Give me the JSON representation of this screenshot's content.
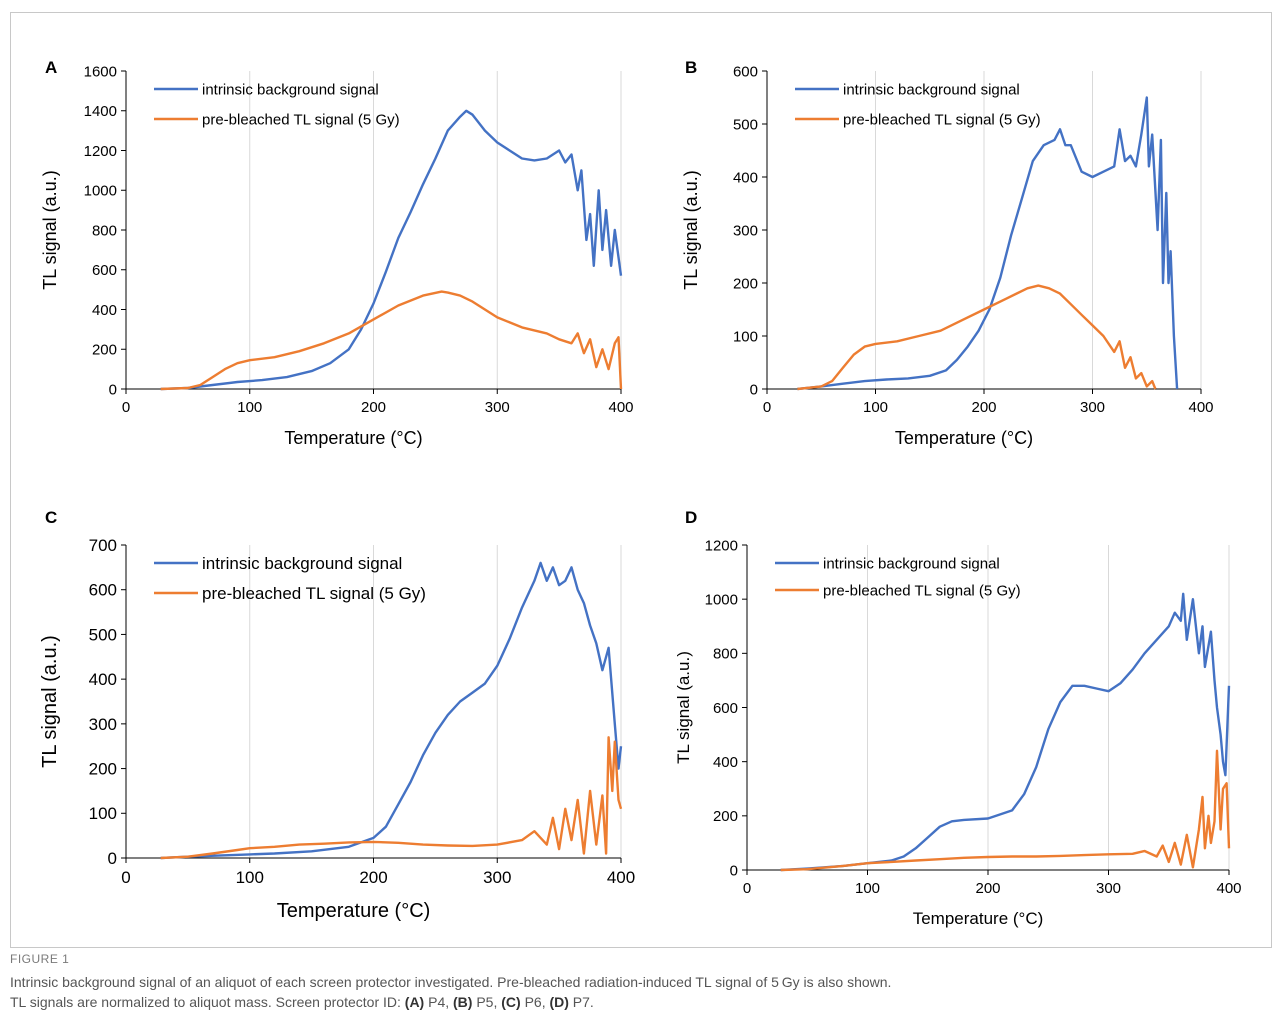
{
  "figure": {
    "label": "FIGURE 1",
    "caption_line1": "Intrinsic background signal of an aliquot of each screen protector investigated. Pre-bleached radiation-induced TL signal of 5 Gy is also shown.",
    "caption_line2_start": "TL signals are normalized to aliquot mass. Screen protector ID: ",
    "id_a": "(A)",
    "id_a_val": " P4, ",
    "id_b": "(B)",
    "id_b_val": " P5, ",
    "id_c": "(C)",
    "id_c_val": " P6, ",
    "id_d": "(D)",
    "id_d_val": " P7."
  },
  "colors": {
    "blue": "#4472C4",
    "orange": "#ED7D31",
    "grid": "#d9d9d9",
    "axis": "#000000"
  },
  "chart_data": [
    {
      "panel": "A",
      "type": "line",
      "xlabel": "Temperature (°C)",
      "ylabel": "TL signal (a.u.)",
      "xlim": [
        0,
        400
      ],
      "ylim": [
        0,
        1600
      ],
      "xticks": [
        0,
        100,
        200,
        300,
        400
      ],
      "yticks": [
        0,
        200,
        400,
        600,
        800,
        1000,
        1200,
        1400,
        1600
      ],
      "grid": "vertical",
      "legend": "top-left",
      "series": [
        {
          "name": "intrinsic background signal",
          "color": "blue",
          "x": [
            28,
            50,
            70,
            90,
            110,
            130,
            150,
            165,
            180,
            190,
            200,
            210,
            220,
            230,
            240,
            250,
            260,
            270,
            275,
            280,
            290,
            300,
            310,
            320,
            330,
            340,
            350,
            355,
            360,
            365,
            368,
            372,
            375,
            378,
            382,
            385,
            388,
            392,
            395,
            400
          ],
          "y": [
            0,
            5,
            20,
            35,
            45,
            60,
            90,
            130,
            200,
            300,
            430,
            590,
            760,
            890,
            1030,
            1160,
            1300,
            1370,
            1400,
            1380,
            1300,
            1240,
            1200,
            1160,
            1150,
            1160,
            1200,
            1140,
            1180,
            1000,
            1100,
            750,
            880,
            620,
            1000,
            700,
            900,
            620,
            800,
            570
          ]
        },
        {
          "name": "pre-bleached TL signal (5 Gy)",
          "color": "orange",
          "x": [
            28,
            50,
            60,
            70,
            80,
            90,
            100,
            120,
            140,
            160,
            180,
            200,
            220,
            240,
            255,
            260,
            270,
            280,
            290,
            300,
            320,
            340,
            350,
            360,
            365,
            370,
            375,
            380,
            385,
            390,
            395,
            398,
            400
          ],
          "y": [
            0,
            5,
            20,
            60,
            100,
            130,
            145,
            160,
            190,
            230,
            280,
            350,
            420,
            470,
            490,
            485,
            470,
            440,
            400,
            360,
            310,
            280,
            250,
            230,
            280,
            180,
            250,
            110,
            200,
            100,
            230,
            260,
            0
          ]
        }
      ]
    },
    {
      "panel": "B",
      "type": "line",
      "xlabel": "Temperature (°C)",
      "ylabel": "TL signal (a.u.)",
      "xlim": [
        0,
        400
      ],
      "ylim": [
        0,
        600
      ],
      "xticks": [
        0,
        100,
        200,
        300,
        400
      ],
      "yticks": [
        0,
        100,
        200,
        300,
        400,
        500,
        600
      ],
      "grid": "vertical",
      "legend": "top-left",
      "series": [
        {
          "name": "intrinsic background signal",
          "color": "blue",
          "x": [
            28,
            50,
            70,
            90,
            110,
            130,
            150,
            165,
            175,
            185,
            195,
            205,
            215,
            225,
            235,
            245,
            255,
            265,
            270,
            275,
            280,
            290,
            300,
            310,
            320,
            325,
            330,
            335,
            340,
            345,
            350,
            352,
            355,
            360,
            363,
            365,
            368,
            370,
            372,
            375,
            378
          ],
          "y": [
            0,
            5,
            10,
            15,
            18,
            20,
            25,
            35,
            55,
            80,
            110,
            150,
            210,
            290,
            360,
            430,
            460,
            470,
            490,
            460,
            460,
            410,
            400,
            410,
            420,
            490,
            430,
            440,
            420,
            480,
            550,
            420,
            480,
            300,
            470,
            200,
            370,
            200,
            260,
            100,
            0
          ]
        },
        {
          "name": "pre-bleached TL signal (5 Gy)",
          "color": "orange",
          "x": [
            28,
            50,
            60,
            70,
            80,
            90,
            100,
            120,
            140,
            160,
            180,
            200,
            220,
            240,
            250,
            260,
            270,
            280,
            290,
            300,
            310,
            320,
            325,
            330,
            335,
            340,
            345,
            350,
            355,
            358
          ],
          "y": [
            0,
            5,
            15,
            40,
            65,
            80,
            85,
            90,
            100,
            110,
            130,
            150,
            170,
            190,
            195,
            190,
            180,
            160,
            140,
            120,
            100,
            70,
            90,
            40,
            60,
            20,
            30,
            5,
            15,
            0
          ]
        }
      ]
    },
    {
      "panel": "C",
      "type": "line",
      "xlabel": "Temperature (°C)",
      "ylabel": "TL signal (a.u.)",
      "xlim": [
        0,
        400
      ],
      "ylim": [
        0,
        700
      ],
      "xticks": [
        0,
        100,
        200,
        300,
        400
      ],
      "yticks": [
        0,
        100,
        200,
        300,
        400,
        500,
        600,
        700
      ],
      "grid": "vertical",
      "legend": "top-left",
      "series": [
        {
          "name": "intrinsic background signal",
          "color": "blue",
          "x": [
            28,
            50,
            80,
            100,
            120,
            150,
            180,
            200,
            210,
            220,
            230,
            240,
            250,
            260,
            270,
            280,
            290,
            300,
            310,
            320,
            330,
            335,
            340,
            345,
            350,
            355,
            360,
            365,
            370,
            375,
            380,
            385,
            390,
            395,
            398,
            400
          ],
          "y": [
            0,
            3,
            6,
            8,
            10,
            15,
            25,
            45,
            70,
            120,
            170,
            230,
            280,
            320,
            350,
            370,
            390,
            430,
            490,
            560,
            620,
            660,
            620,
            650,
            610,
            620,
            650,
            600,
            570,
            520,
            480,
            420,
            470,
            300,
            200,
            250
          ]
        },
        {
          "name": "pre-bleached TL signal (5 Gy)",
          "color": "orange",
          "x": [
            28,
            50,
            70,
            90,
            100,
            120,
            140,
            160,
            180,
            200,
            220,
            240,
            260,
            280,
            300,
            320,
            330,
            340,
            345,
            350,
            355,
            360,
            365,
            370,
            375,
            380,
            385,
            388,
            390,
            393,
            395,
            398,
            400
          ],
          "y": [
            0,
            3,
            10,
            18,
            22,
            25,
            30,
            32,
            35,
            36,
            34,
            30,
            28,
            27,
            30,
            40,
            60,
            30,
            90,
            20,
            110,
            40,
            130,
            10,
            150,
            30,
            140,
            10,
            270,
            150,
            260,
            130,
            110
          ]
        }
      ]
    },
    {
      "panel": "D",
      "type": "line",
      "xlabel": "Temperature (°C)",
      "ylabel": "TL signal (a.u.)",
      "xlim": [
        0,
        400
      ],
      "ylim": [
        0,
        1200
      ],
      "xticks": [
        0,
        100,
        200,
        300,
        400
      ],
      "yticks": [
        0,
        200,
        400,
        600,
        800,
        1000,
        1200
      ],
      "grid": "vertical",
      "legend": "top-left",
      "series": [
        {
          "name": "intrinsic background signal",
          "color": "blue",
          "x": [
            28,
            50,
            80,
            100,
            120,
            130,
            140,
            150,
            160,
            170,
            180,
            200,
            220,
            230,
            240,
            250,
            260,
            270,
            280,
            290,
            300,
            310,
            320,
            330,
            340,
            350,
            355,
            360,
            362,
            365,
            370,
            375,
            378,
            380,
            385,
            388,
            390,
            393,
            395,
            397,
            400
          ],
          "y": [
            0,
            5,
            15,
            25,
            35,
            50,
            80,
            120,
            160,
            180,
            185,
            190,
            220,
            280,
            380,
            520,
            620,
            680,
            680,
            670,
            660,
            690,
            740,
            800,
            850,
            900,
            950,
            920,
            1020,
            850,
            1000,
            800,
            900,
            750,
            880,
            700,
            600,
            500,
            400,
            350,
            680
          ]
        },
        {
          "name": "pre-bleached TL signal (5 Gy)",
          "color": "orange",
          "x": [
            28,
            50,
            80,
            100,
            120,
            140,
            160,
            180,
            200,
            220,
            240,
            260,
            280,
            300,
            320,
            330,
            340,
            345,
            350,
            355,
            360,
            365,
            370,
            375,
            378,
            380,
            383,
            385,
            388,
            390,
            393,
            395,
            398,
            400
          ],
          "y": [
            0,
            3,
            15,
            25,
            30,
            35,
            40,
            45,
            48,
            50,
            50,
            52,
            55,
            58,
            60,
            70,
            50,
            90,
            30,
            100,
            20,
            130,
            10,
            150,
            270,
            80,
            200,
            100,
            180,
            440,
            150,
            300,
            320,
            80
          ]
        }
      ]
    }
  ]
}
